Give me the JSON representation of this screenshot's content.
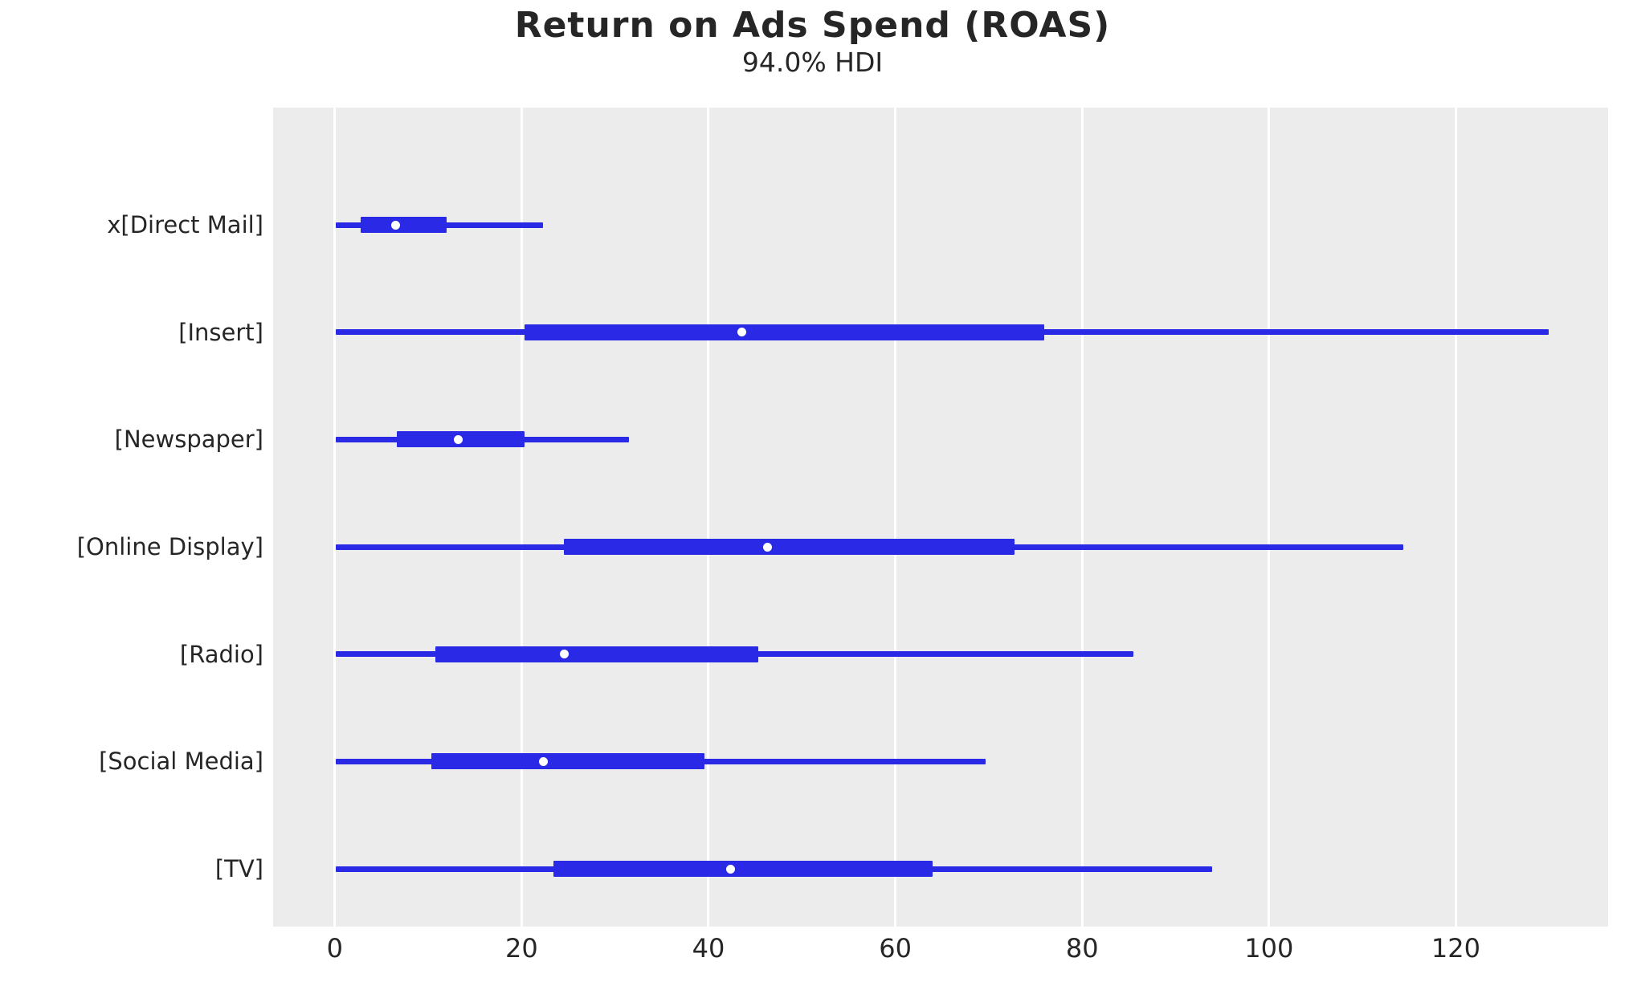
{
  "chart": {
    "title": "Return on Ads Spend (ROAS)",
    "subtitle": "94.0% HDI"
  },
  "colors": {
    "line_blue": "#2a2ae6",
    "plot_background": "#ececec",
    "gridline": "#ffffff",
    "text": "#262626"
  },
  "chart_data": {
    "type": "forest",
    "title": "Return on Ads Spend (ROAS)",
    "subtitle": "94.0% HDI",
    "hdi_probability": "94.0%",
    "orientation": "horizontal",
    "xlabel": "",
    "ylabel": "",
    "xlim": [
      -6.6,
      136.3
    ],
    "x_ticks": [
      0,
      20,
      40,
      60,
      80,
      100,
      120
    ],
    "grid": "white vertical gridlines on light gray panel",
    "legend": "none",
    "rows": [
      {
        "label": "x[Direct Mail]",
        "hdi_94": [
          0.1,
          22.3
        ],
        "hdi_thick": [
          2.8,
          12.0
        ],
        "median": 6.5
      },
      {
        "label": "[Insert]",
        "hdi_94": [
          0.1,
          129.9
        ],
        "hdi_thick": [
          20.3,
          75.9
        ],
        "median": 43.6
      },
      {
        "label": "[Newspaper]",
        "hdi_94": [
          0.1,
          31.5
        ],
        "hdi_thick": [
          6.6,
          20.3
        ],
        "median": 13.2
      },
      {
        "label": "[Online Display]",
        "hdi_94": [
          0.1,
          114.4
        ],
        "hdi_thick": [
          24.5,
          72.8
        ],
        "median": 46.3
      },
      {
        "label": "[Radio]",
        "hdi_94": [
          0.1,
          85.5
        ],
        "hdi_thick": [
          10.8,
          45.3
        ],
        "median": 24.6
      },
      {
        "label": "[Social Media]",
        "hdi_94": [
          0.1,
          69.7
        ],
        "hdi_thick": [
          10.3,
          39.6
        ],
        "median": 22.3
      },
      {
        "label": "[TV]",
        "hdi_94": [
          0.1,
          93.9
        ],
        "hdi_thick": [
          23.4,
          64.0
        ],
        "median": 42.4
      }
    ]
  }
}
